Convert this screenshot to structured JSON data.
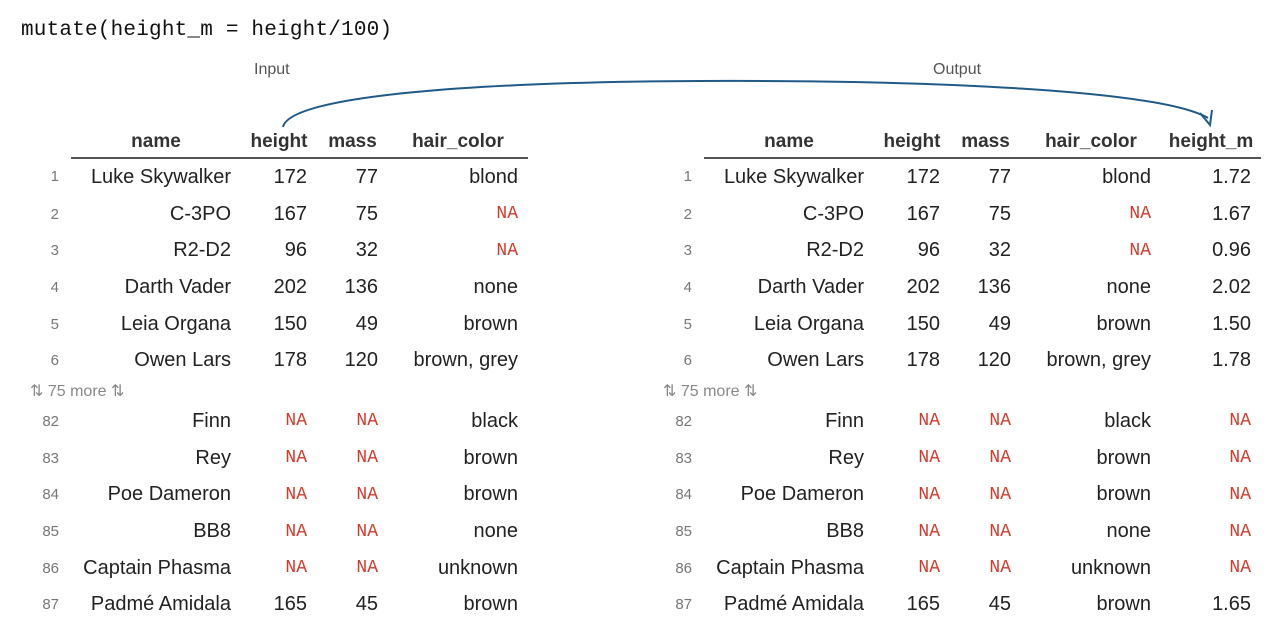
{
  "code": "mutate(height_m = height/100)",
  "labels": {
    "input": "Input",
    "output": "Output"
  },
  "colors": {
    "na": "#d33a2c",
    "arrow": "#1f5b86"
  },
  "more_text": "⇅ 75 more ⇅",
  "input": {
    "columns": [
      "name",
      "height",
      "mass",
      "hair_color"
    ],
    "rows_top": [
      {
        "idx": "1",
        "cells": [
          "Luke Skywalker",
          "172",
          "77",
          "blond"
        ]
      },
      {
        "idx": "2",
        "cells": [
          "C-3PO",
          "167",
          "75",
          "NA"
        ]
      },
      {
        "idx": "3",
        "cells": [
          "R2-D2",
          "96",
          "32",
          "NA"
        ]
      },
      {
        "idx": "4",
        "cells": [
          "Darth Vader",
          "202",
          "136",
          "none"
        ]
      },
      {
        "idx": "5",
        "cells": [
          "Leia Organa",
          "150",
          "49",
          "brown"
        ]
      },
      {
        "idx": "6",
        "cells": [
          "Owen Lars",
          "178",
          "120",
          "brown, grey"
        ]
      }
    ],
    "rows_bottom": [
      {
        "idx": "82",
        "cells": [
          "Finn",
          "NA",
          "NA",
          "black"
        ]
      },
      {
        "idx": "83",
        "cells": [
          "Rey",
          "NA",
          "NA",
          "brown"
        ]
      },
      {
        "idx": "84",
        "cells": [
          "Poe Dameron",
          "NA",
          "NA",
          "brown"
        ]
      },
      {
        "idx": "85",
        "cells": [
          "BB8",
          "NA",
          "NA",
          "none"
        ]
      },
      {
        "idx": "86",
        "cells": [
          "Captain Phasma",
          "NA",
          "NA",
          "unknown"
        ]
      },
      {
        "idx": "87",
        "cells": [
          "Padmé Amidala",
          "165",
          "45",
          "brown"
        ]
      }
    ]
  },
  "output": {
    "columns": [
      "name",
      "height",
      "mass",
      "hair_color",
      "height_m"
    ],
    "rows_top": [
      {
        "idx": "1",
        "cells": [
          "Luke Skywalker",
          "172",
          "77",
          "blond",
          "1.72"
        ]
      },
      {
        "idx": "2",
        "cells": [
          "C-3PO",
          "167",
          "75",
          "NA",
          "1.67"
        ]
      },
      {
        "idx": "3",
        "cells": [
          "R2-D2",
          "96",
          "32",
          "NA",
          "0.96"
        ]
      },
      {
        "idx": "4",
        "cells": [
          "Darth Vader",
          "202",
          "136",
          "none",
          "2.02"
        ]
      },
      {
        "idx": "5",
        "cells": [
          "Leia Organa",
          "150",
          "49",
          "brown",
          "1.50"
        ]
      },
      {
        "idx": "6",
        "cells": [
          "Owen Lars",
          "178",
          "120",
          "brown, grey",
          "1.78"
        ]
      }
    ],
    "rows_bottom": [
      {
        "idx": "82",
        "cells": [
          "Finn",
          "NA",
          "NA",
          "black",
          "NA"
        ]
      },
      {
        "idx": "83",
        "cells": [
          "Rey",
          "NA",
          "NA",
          "brown",
          "NA"
        ]
      },
      {
        "idx": "84",
        "cells": [
          "Poe Dameron",
          "NA",
          "NA",
          "brown",
          "NA"
        ]
      },
      {
        "idx": "85",
        "cells": [
          "BB8",
          "NA",
          "NA",
          "none",
          "NA"
        ]
      },
      {
        "idx": "86",
        "cells": [
          "Captain Phasma",
          "NA",
          "NA",
          "unknown",
          "NA"
        ]
      },
      {
        "idx": "87",
        "cells": [
          "Padmé Amidala",
          "165",
          "45",
          "brown",
          "1.65"
        ]
      }
    ]
  }
}
